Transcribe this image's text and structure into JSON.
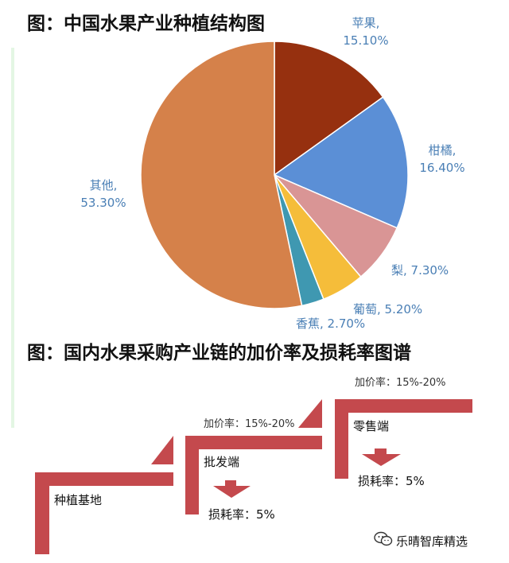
{
  "page": {
    "title_pie": "图：中国水果产业种植结构图",
    "title_chain": "图：国内水果采购产业链的加价率及损耗率图谱"
  },
  "chart_data": [
    {
      "type": "pie",
      "title": "图：中国水果产业种植结构图",
      "slices": [
        {
          "name": "苹果",
          "value": 15.1,
          "label": "15.10%",
          "color": "#96300f"
        },
        {
          "name": "柑橘",
          "value": 16.4,
          "label": "16.40%",
          "color": "#5b8fd6"
        },
        {
          "name": "梨",
          "value": 7.3,
          "label": "7.30%",
          "color": "#d99595"
        },
        {
          "name": "葡萄",
          "value": 5.2,
          "label": "5.20%",
          "color": "#f5bd3a"
        },
        {
          "name": "香蕉",
          "value": 2.7,
          "label": "2.70%",
          "color": "#3f98b1"
        },
        {
          "name": "其他",
          "value": 53.3,
          "label": "53.30%",
          "color": "#d5814a"
        }
      ]
    }
  ],
  "chain": {
    "stage1": "种植基地",
    "stage2": "批发端",
    "stage3": "零售端",
    "markup1": "加价率：15%-20%",
    "markup2": "加价率：15%-20%",
    "loss1": "损耗率：5%",
    "loss2": "损耗率：5%",
    "color": "#c4494d"
  },
  "watermark": {
    "text": "乐晴智库精选",
    "icon": "wechat-icon"
  }
}
